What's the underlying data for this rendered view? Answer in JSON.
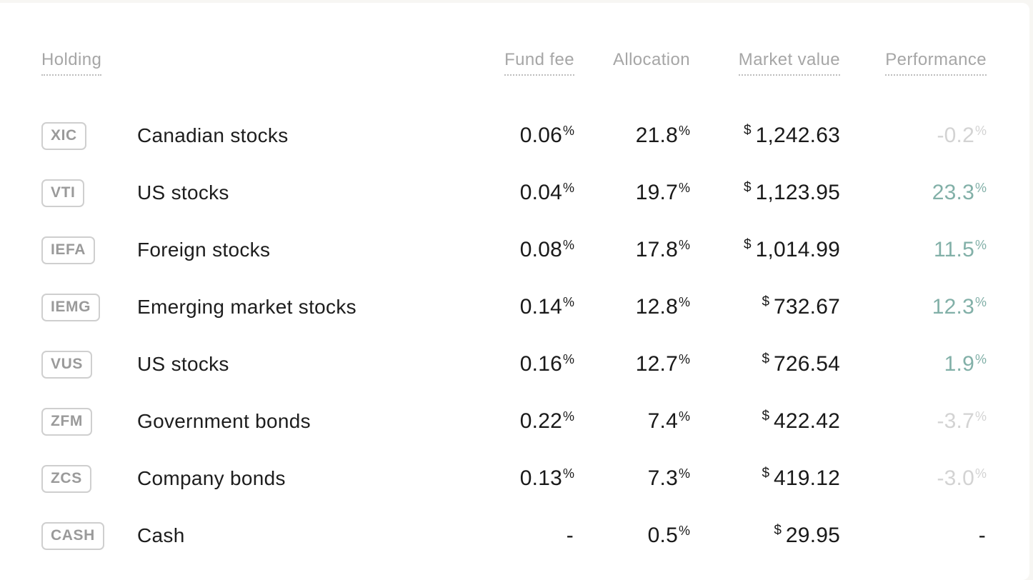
{
  "colors": {
    "background": "#f7f6f3",
    "card": "#ffffff",
    "header_text": "#a6a6a6",
    "primary_text": "#1d1d1d",
    "ticker_text": "#9a9a9a",
    "performance_positive": "#82b0a8",
    "performance_negative": "#d3d3d3"
  },
  "table": {
    "headers": {
      "holding": "Holding",
      "fund_fee": "Fund fee",
      "allocation": "Allocation",
      "market_value": "Market value",
      "performance": "Performance"
    },
    "rows": [
      {
        "ticker": "XIC",
        "name": "Canadian stocks",
        "fee": "0.06",
        "fee_suffix": "%",
        "alloc": "21.8",
        "alloc_suffix": "%",
        "currency": "$",
        "value": "1,242.63",
        "perf": "-0.2",
        "perf_suffix": "%",
        "perf_state": "negative"
      },
      {
        "ticker": "VTI",
        "name": "US stocks",
        "fee": "0.04",
        "fee_suffix": "%",
        "alloc": "19.7",
        "alloc_suffix": "%",
        "currency": "$",
        "value": "1,123.95",
        "perf": "23.3",
        "perf_suffix": "%",
        "perf_state": "positive"
      },
      {
        "ticker": "IEFA",
        "name": "Foreign stocks",
        "fee": "0.08",
        "fee_suffix": "%",
        "alloc": "17.8",
        "alloc_suffix": "%",
        "currency": "$",
        "value": "1,014.99",
        "perf": "11.5",
        "perf_suffix": "%",
        "perf_state": "positive"
      },
      {
        "ticker": "IEMG",
        "name": "Emerging market stocks",
        "fee": "0.14",
        "fee_suffix": "%",
        "alloc": "12.8",
        "alloc_suffix": "%",
        "currency": "$",
        "value": "732.67",
        "perf": "12.3",
        "perf_suffix": "%",
        "perf_state": "positive"
      },
      {
        "ticker": "VUS",
        "name": "US stocks",
        "fee": "0.16",
        "fee_suffix": "%",
        "alloc": "12.7",
        "alloc_suffix": "%",
        "currency": "$",
        "value": "726.54",
        "perf": "1.9",
        "perf_suffix": "%",
        "perf_state": "positive"
      },
      {
        "ticker": "ZFM",
        "name": "Government bonds",
        "fee": "0.22",
        "fee_suffix": "%",
        "alloc": "7.4",
        "alloc_suffix": "%",
        "currency": "$",
        "value": "422.42",
        "perf": "-3.7",
        "perf_suffix": "%",
        "perf_state": "negative"
      },
      {
        "ticker": "ZCS",
        "name": "Company bonds",
        "fee": "0.13",
        "fee_suffix": "%",
        "alloc": "7.3",
        "alloc_suffix": "%",
        "currency": "$",
        "value": "419.12",
        "perf": "-3.0",
        "perf_suffix": "%",
        "perf_state": "negative"
      },
      {
        "ticker": "CASH",
        "name": "Cash",
        "fee": "-",
        "fee_suffix": "",
        "alloc": "0.5",
        "alloc_suffix": "%",
        "currency": "$",
        "value": "29.95",
        "perf": "-",
        "perf_suffix": "",
        "perf_state": "none"
      }
    ]
  }
}
